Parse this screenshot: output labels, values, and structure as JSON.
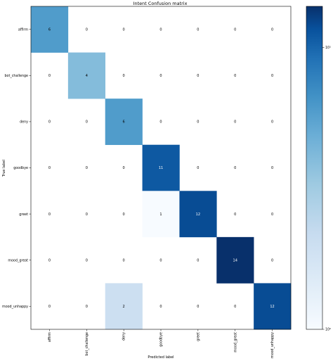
{
  "chart_data": {
    "type": "heatmap",
    "title": "Intent Confusion matrix",
    "xlabel": "Predicted label",
    "ylabel": "True label",
    "row_labels": [
      "affirm",
      "bot_challenge",
      "deny",
      "goodbye",
      "greet",
      "mood_great",
      "mood_unhappy"
    ],
    "col_labels": [
      "affirm",
      "bot_challenge",
      "deny",
      "goodbye",
      "greet",
      "mood_great",
      "mood_unhappy"
    ],
    "values": [
      [
        6,
        0,
        0,
        0,
        0,
        0,
        0
      ],
      [
        0,
        4,
        0,
        0,
        0,
        0,
        0
      ],
      [
        0,
        0,
        6,
        0,
        0,
        0,
        0
      ],
      [
        0,
        0,
        0,
        11,
        0,
        0,
        0
      ],
      [
        0,
        0,
        0,
        1,
        12,
        0,
        0
      ],
      [
        0,
        0,
        0,
        0,
        0,
        14,
        0
      ],
      [
        0,
        0,
        2,
        0,
        0,
        0,
        12
      ]
    ],
    "colormap": "Blues",
    "color_scale": "log",
    "colorbar": {
      "range": [
        1,
        14
      ],
      "ticks": [
        {
          "value": 1,
          "label": "10⁰"
        },
        {
          "value": 10,
          "label": "10¹"
        }
      ]
    },
    "grid": false
  }
}
